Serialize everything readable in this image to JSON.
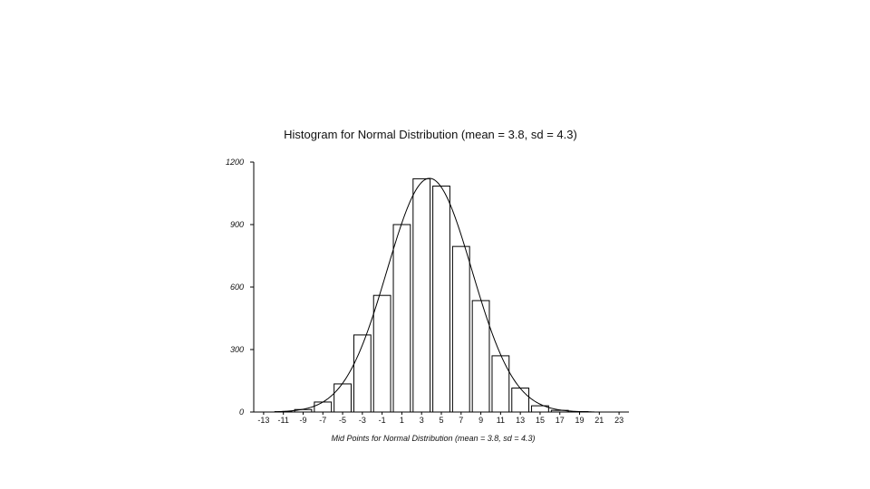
{
  "chart_data": {
    "type": "bar",
    "title": "Histogram for Normal Distribution (mean = 3.8, sd = 4.3)",
    "xlabel": "Mid Points for Normal Distribution (mean = 3.8, sd = 4.3)",
    "ylabel": "",
    "ylim": [
      0,
      1200
    ],
    "y_ticks": [
      0,
      300,
      600,
      900,
      1200
    ],
    "y_tick_labels": [
      "0",
      "300",
      "600",
      "900",
      "1200"
    ],
    "xlim": [
      -14,
      24
    ],
    "x_ticks": [
      -13,
      -11,
      -9,
      -7,
      -5,
      -3,
      -1,
      1,
      3,
      5,
      7,
      9,
      11,
      13,
      15,
      17,
      19,
      21,
      23
    ],
    "x_tick_labels": [
      "-13",
      "-11",
      "-9",
      "-7",
      "-5",
      "-3",
      "-1",
      "1",
      "3",
      "5",
      "7",
      "9",
      "11",
      "13",
      "15",
      "17",
      "19",
      "21",
      "23"
    ],
    "bin_width": 2,
    "categories": [
      -11,
      -9,
      -7,
      -5,
      -3,
      -1,
      1,
      3,
      5,
      7,
      9,
      11,
      13,
      15,
      17,
      19
    ],
    "values": [
      2,
      12,
      48,
      135,
      370,
      560,
      900,
      1120,
      1085,
      795,
      535,
      270,
      115,
      30,
      8,
      2
    ],
    "fit_curve": {
      "type": "normal",
      "mean": 3.8,
      "sd": 4.3,
      "peak": 1122
    },
    "grid": false,
    "colors": {
      "bar_fill": "#ffffff",
      "bar_stroke": "#000000",
      "axis": "#000000",
      "curve": "#000000"
    }
  }
}
